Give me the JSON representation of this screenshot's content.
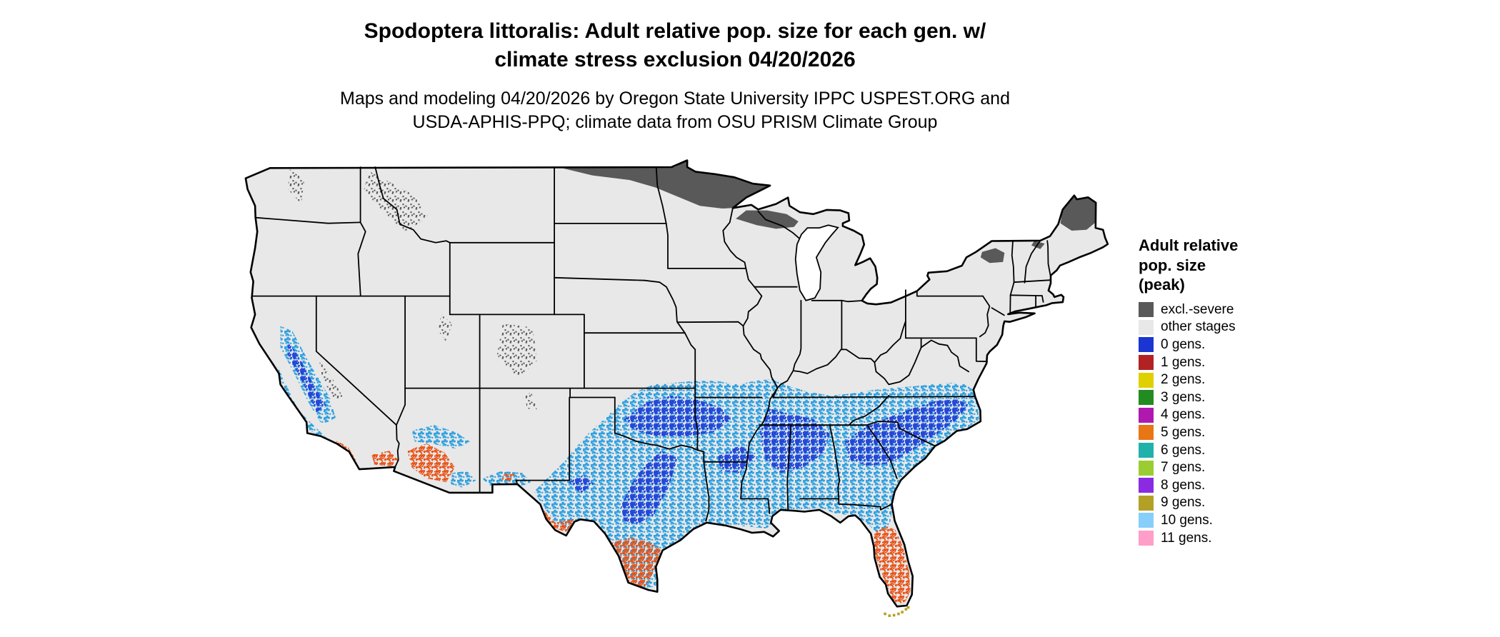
{
  "header": {
    "title_line1": "Spodoptera littoralis: Adult relative pop. size for each gen. w/",
    "title_line2": "climate stress exclusion 04/20/2026",
    "subtitle_line1": "Maps and modeling 04/20/2026 by Oregon State University IPPC USPEST.ORG and",
    "subtitle_line2": "USDA-APHIS-PPQ; climate data from OSU PRISM Climate Group"
  },
  "legend": {
    "title_lines": [
      "Adult relative",
      "pop. size",
      "(peak)"
    ],
    "items": [
      {
        "label": "excl.-severe",
        "color": "#595959"
      },
      {
        "label": "other stages",
        "color": "#E8E8E8"
      },
      {
        "label": "0 gens.",
        "color": "#1A35D2"
      },
      {
        "label": "1 gens.",
        "color": "#B22222"
      },
      {
        "label": "2 gens.",
        "color": "#E0D000"
      },
      {
        "label": "3 gens.",
        "color": "#228B22"
      },
      {
        "label": "4 gens.",
        "color": "#B019B0"
      },
      {
        "label": "5 gens.",
        "color": "#E87614"
      },
      {
        "label": "6 gens.",
        "color": "#20B2AA"
      },
      {
        "label": "7 gens.",
        "color": "#9ACD32"
      },
      {
        "label": "8 gens.",
        "color": "#8A2BE2"
      },
      {
        "label": "9 gens.",
        "color": "#B3A125"
      },
      {
        "label": "10 gens.",
        "color": "#87CEFA"
      },
      {
        "label": "11 gens.",
        "color": "#FF9EC8"
      }
    ]
  },
  "map": {
    "background": "#FFFFFF",
    "base_color": "#E8E8E8",
    "border_color": "#000000",
    "regions": [
      {
        "name": "excluded-severe-north",
        "legend_label": "excl.-severe",
        "color": "#595959"
      },
      {
        "name": "south-band-light-blue-gens",
        "legend_label": "10 gens.",
        "color": "#2B9FE0"
      },
      {
        "name": "blue-gens-patches",
        "legend_label": "0 gens.",
        "color": "#2544D8"
      },
      {
        "name": "orange-gens-far-south",
        "legend_label": "5 gens.",
        "color": "#E85014"
      },
      {
        "name": "florida-keys-olive-gens",
        "legend_label": "9 gens.",
        "color": "#B3A125"
      }
    ]
  }
}
